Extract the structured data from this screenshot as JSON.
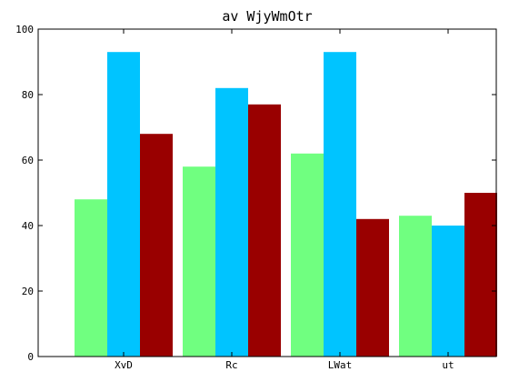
{
  "chart_data": {
    "type": "bar",
    "title": "av WjyWmOtr",
    "xlabel": "",
    "ylabel": "",
    "categories": [
      "XvD",
      "Rc",
      "LWat",
      "ut"
    ],
    "series": [
      {
        "color": "#70ff80",
        "values": [
          48,
          58,
          62,
          43
        ]
      },
      {
        "color": "#00c4ff",
        "values": [
          93,
          82,
          93,
          40
        ]
      },
      {
        "color": "#990000",
        "values": [
          68,
          77,
          42,
          50
        ]
      }
    ],
    "ylim": [
      0,
      100
    ],
    "yticks": [
      0,
      20,
      40,
      60,
      80,
      100
    ],
    "grid": false,
    "legend": "none"
  }
}
